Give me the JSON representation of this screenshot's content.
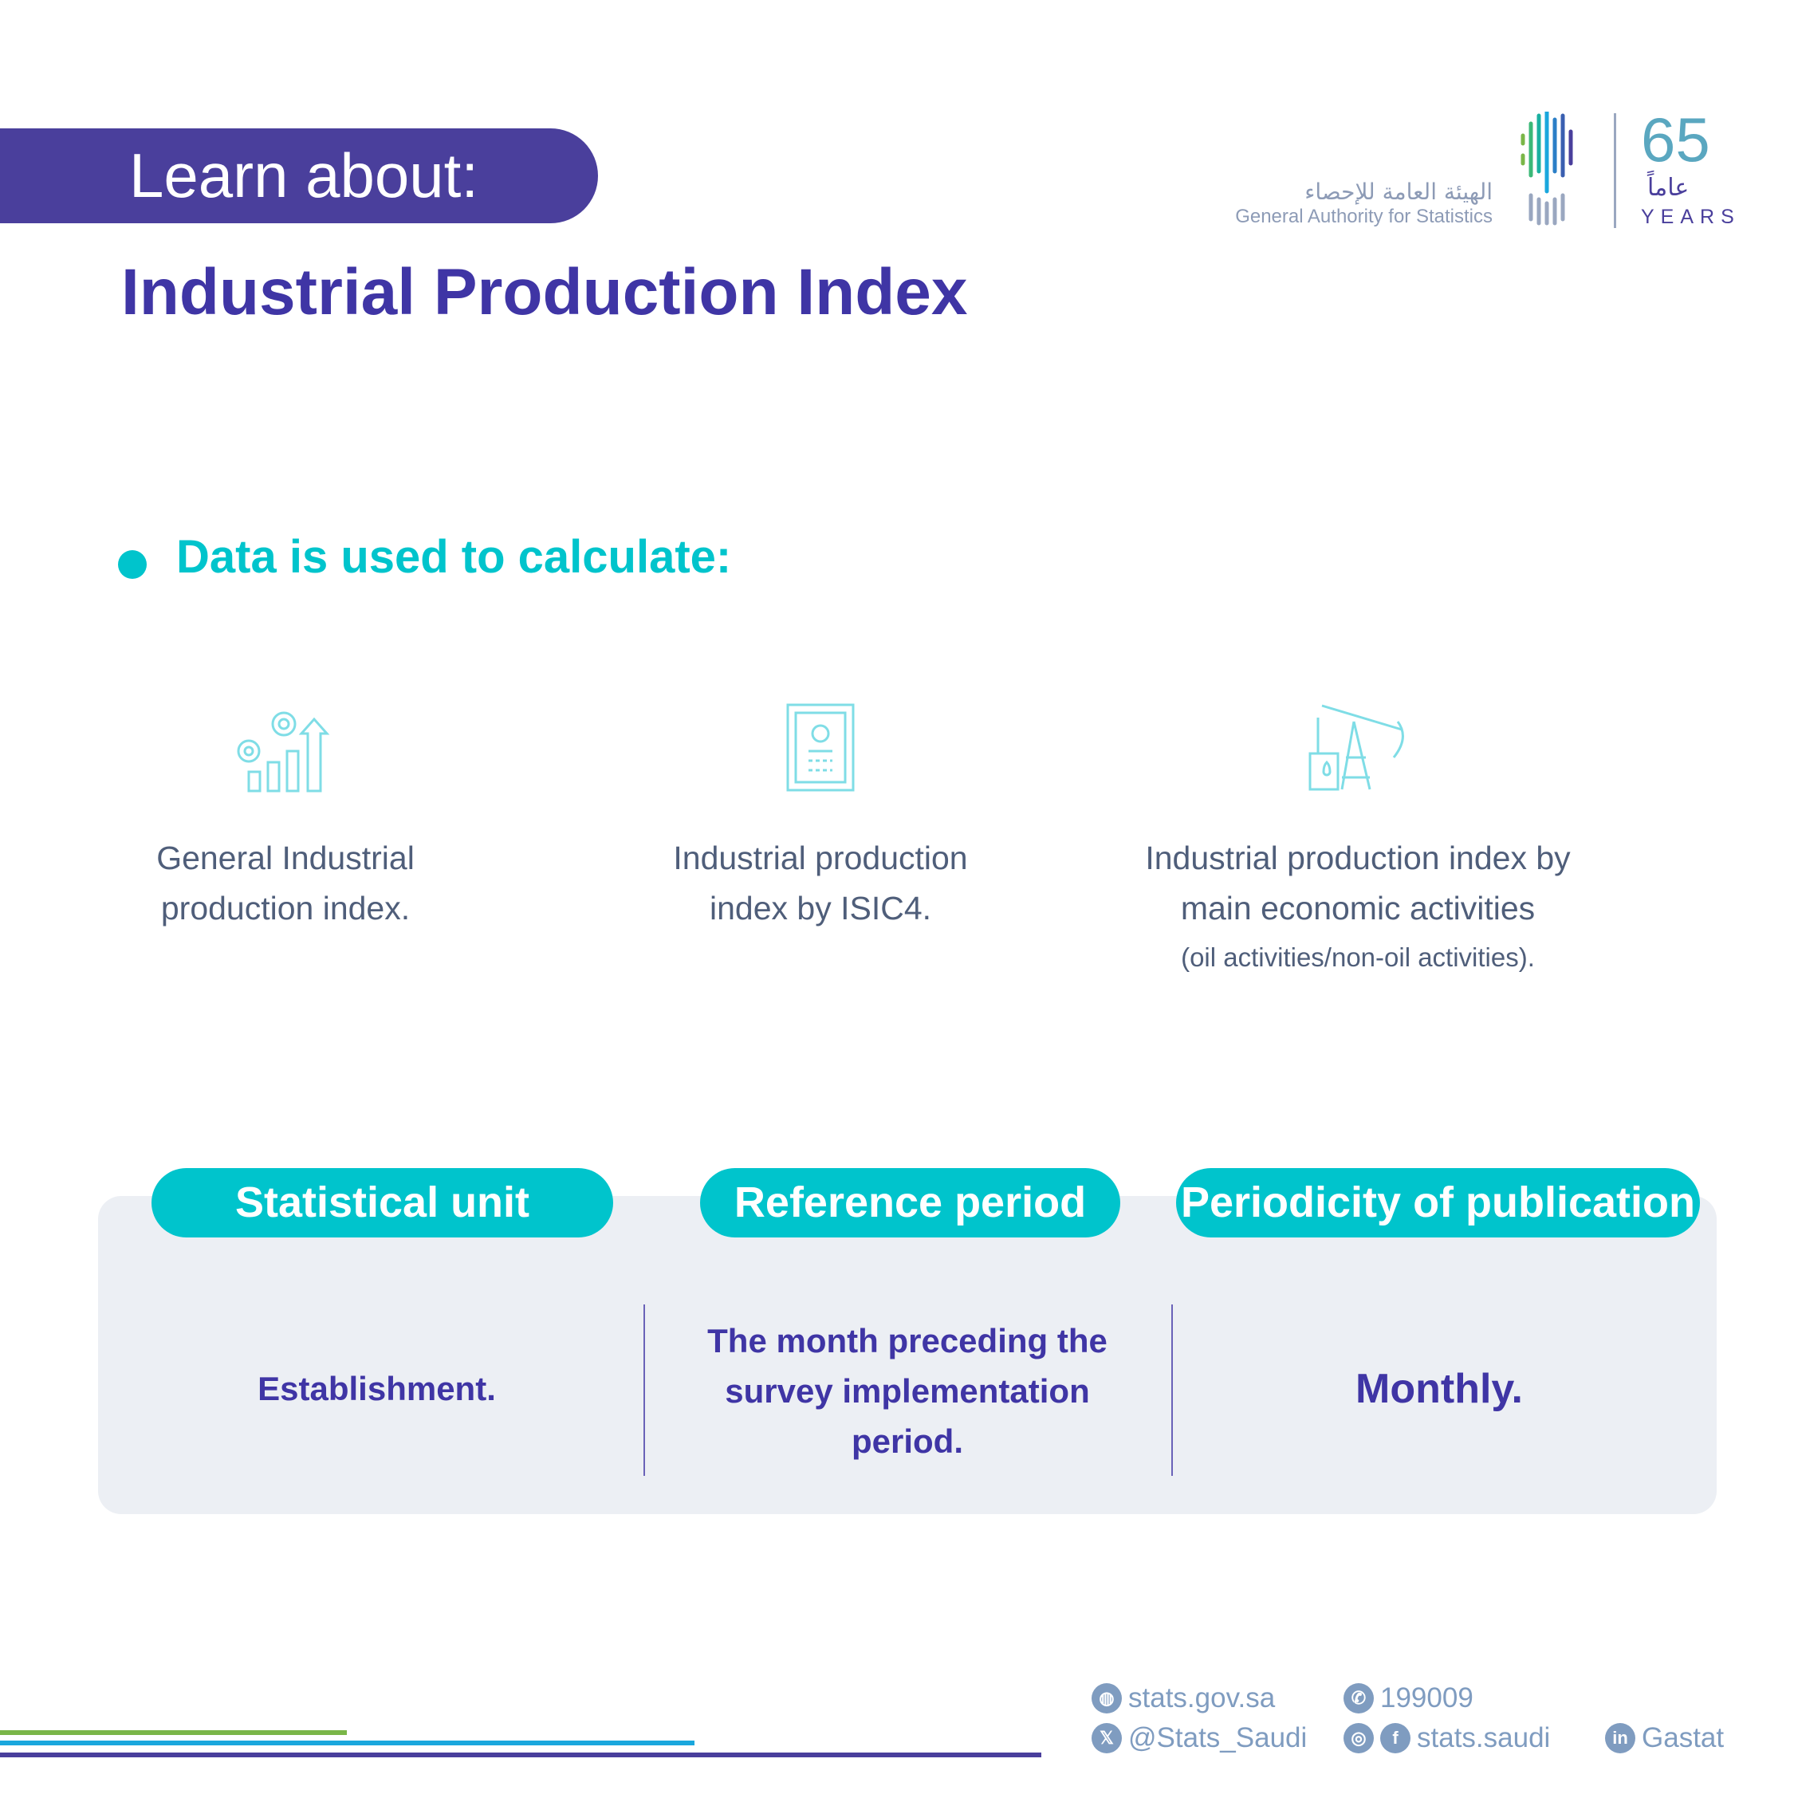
{
  "header": {
    "learn_label": "Learn about:",
    "title": "Industrial Production Index"
  },
  "logo": {
    "arabic": "الهيئة العامة للإحصاء",
    "english": "General Authority for Statistics",
    "anniversary_number": "65",
    "anniversary_arabic": "عاماً",
    "anniversary_years": "YEARS"
  },
  "section": {
    "heading": "Data is used to calculate:"
  },
  "items": [
    {
      "icon": "gears-chart-icon",
      "line1": "General Industrial",
      "line2": "production index."
    },
    {
      "icon": "document-gear-icon",
      "line1": "Industrial production",
      "line2": "index by ISIC4."
    },
    {
      "icon": "oil-pump-icon",
      "line1": "Industrial production index by",
      "line2": "main economic activities",
      "line3": "(oil activities/non-oil activities)."
    }
  ],
  "table": {
    "headers": [
      "Statistical unit",
      "Reference period",
      "Periodicity of publication"
    ],
    "values": {
      "unit": "Establishment.",
      "period_lines": [
        "The month preceding the",
        "survey implementation",
        "period."
      ],
      "periodicity": "Monthly."
    }
  },
  "footer": {
    "website": "stats.gov.sa",
    "phone": "199009",
    "twitter": "@Stats_Saudi",
    "social": "stats.saudi",
    "linkedin": "Gastat"
  },
  "colors": {
    "purple": "#4a3f9c",
    "cyan": "#00c4cc",
    "green": "#7ab648",
    "blue": "#1aa7dd",
    "footer": "#7f9cc0"
  }
}
